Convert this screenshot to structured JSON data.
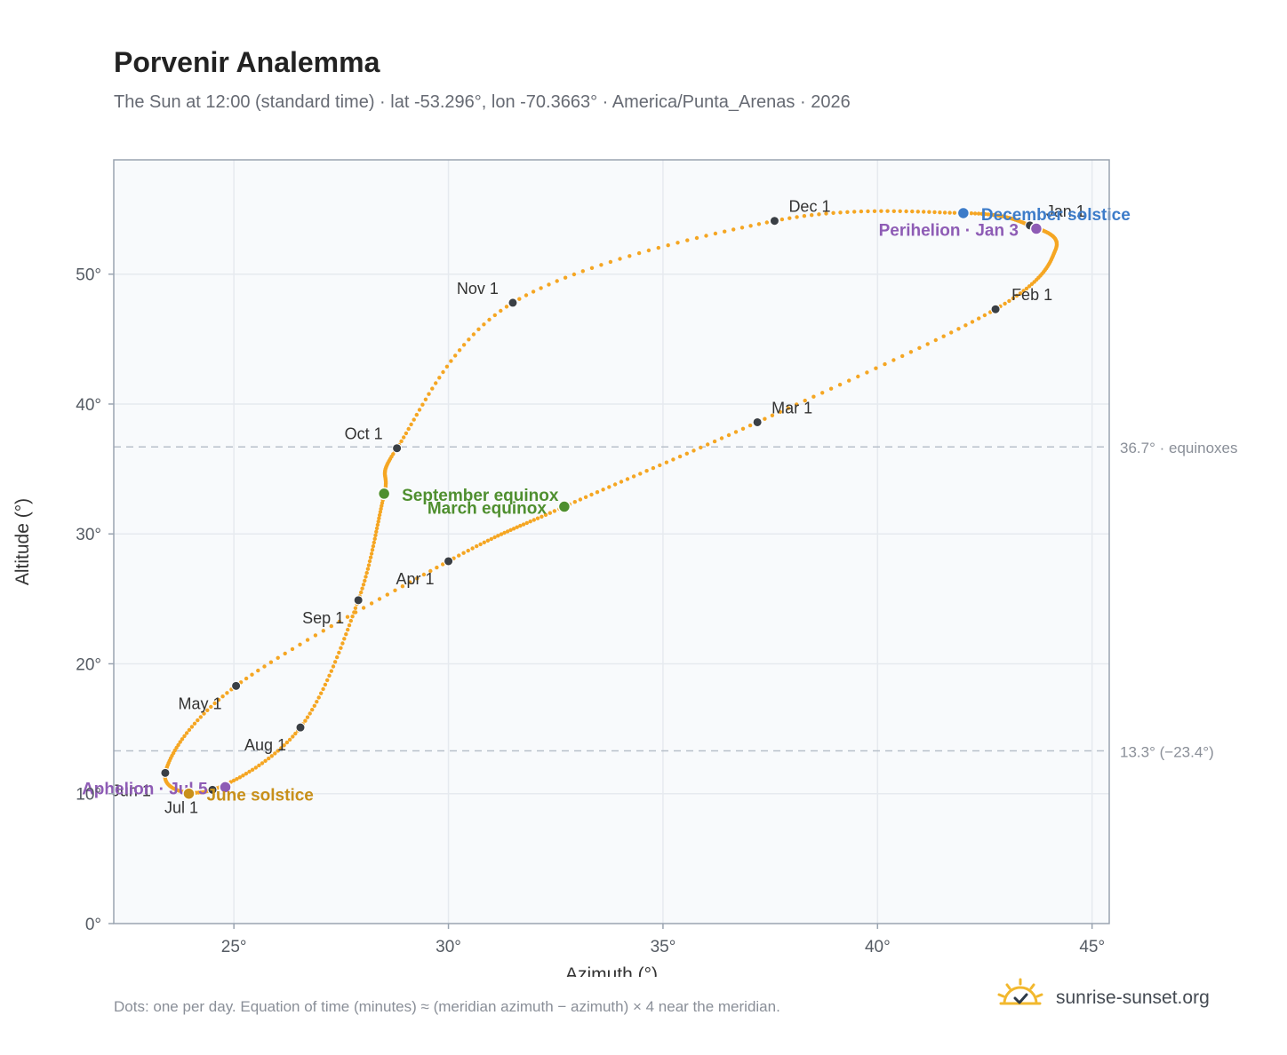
{
  "title": "Porvenir Analemma",
  "subtitle": "The Sun at 12:00 (standard time) · lat -53.296°, lon -70.3663° · America/Punta_Arenas · 2026",
  "footnote": "Dots: one per day. Equation of time (minutes) ≈ (meridian azimuth − azimuth) × 4 near the meridian.",
  "brand": {
    "name": "sunrise-sunset.org",
    "icon": "sun-logo-icon"
  },
  "colors": {
    "curve": "#f5a623",
    "month_marker": "#3a3f45",
    "december_solstice": "#3d7cc9",
    "june_solstice": "#c8901a",
    "equinox": "#4f8f2f",
    "apsis": "#8e5cb5",
    "grid": "#e6eaef",
    "reference_line": "#b8c0ca",
    "axis_frame": "#9aa4b1"
  },
  "chart_data": {
    "type": "scatter",
    "title": "Porvenir Analemma",
    "xlabel": "Azimuth (°)",
    "ylabel": "Altitude (°)",
    "xlim": [
      22.2,
      45.4
    ],
    "ylim": [
      0,
      58.8
    ],
    "x_ticks": [
      25,
      30,
      35,
      40,
      45
    ],
    "x_tick_labels": [
      "25°",
      "30°",
      "35°",
      "40°",
      "45°"
    ],
    "y_ticks": [
      0,
      10,
      20,
      30,
      40,
      50
    ],
    "y_tick_labels": [
      "0°",
      "10°",
      "20°",
      "30°",
      "40°",
      "50°"
    ],
    "grid": true,
    "reference_lines": [
      {
        "value": 36.7,
        "label": "36.7° · equinoxes"
      },
      {
        "value": 13.3,
        "label": "13.3° (−23.4°)"
      }
    ],
    "curve_anchors": [
      {
        "x": 43.55,
        "y": 53.75
      },
      {
        "x": 44.15,
        "y": 51.9
      },
      {
        "x": 42.75,
        "y": 47.3
      },
      {
        "x": 37.2,
        "y": 38.6
      },
      {
        "x": 32.7,
        "y": 32.1
      },
      {
        "x": 30.0,
        "y": 27.9
      },
      {
        "x": 25.05,
        "y": 18.3
      },
      {
        "x": 23.4,
        "y": 11.6
      },
      {
        "x": 24.5,
        "y": 10.3
      },
      {
        "x": 26.55,
        "y": 15.1
      },
      {
        "x": 27.9,
        "y": 24.9
      },
      {
        "x": 28.5,
        "y": 33.0
      },
      {
        "x": 28.8,
        "y": 36.6
      },
      {
        "x": 31.5,
        "y": 47.8
      },
      {
        "x": 37.6,
        "y": 54.1
      },
      {
        "x": 42.0,
        "y": 54.7
      },
      {
        "x": 43.55,
        "y": 53.75
      }
    ],
    "month_markers": [
      {
        "label": "Jan 1",
        "x": 43.55,
        "y": 53.75
      },
      {
        "label": "Feb 1",
        "x": 42.75,
        "y": 47.3
      },
      {
        "label": "Mar 1",
        "x": 37.2,
        "y": 38.6
      },
      {
        "label": "Apr 1",
        "x": 30.0,
        "y": 27.9
      },
      {
        "label": "May 1",
        "x": 25.05,
        "y": 18.3
      },
      {
        "label": "Jun 1",
        "x": 23.4,
        "y": 11.6
      },
      {
        "label": "Jul 1",
        "x": 24.5,
        "y": 10.3
      },
      {
        "label": "Aug 1",
        "x": 26.55,
        "y": 15.1
      },
      {
        "label": "Sep 1",
        "x": 27.9,
        "y": 24.9
      },
      {
        "label": "Oct 1",
        "x": 28.8,
        "y": 36.6
      },
      {
        "label": "Nov 1",
        "x": 31.5,
        "y": 47.8
      },
      {
        "label": "Dec 1",
        "x": 37.6,
        "y": 54.1
      }
    ],
    "events": [
      {
        "label": "December solstice",
        "x": 42.0,
        "y": 54.7,
        "color": "#3d7cc9"
      },
      {
        "label": "Perihelion · Jan 3",
        "x": 43.7,
        "y": 53.5,
        "color": "#8e5cb5"
      },
      {
        "label": "September equinox",
        "x": 28.5,
        "y": 33.1,
        "color": "#4f8f2f"
      },
      {
        "label": "March equinox",
        "x": 32.7,
        "y": 32.1,
        "color": "#4f8f2f"
      },
      {
        "label": "Aphelion · Jul 5",
        "x": 24.8,
        "y": 10.5,
        "color": "#8e5cb5"
      },
      {
        "label": "June solstice",
        "x": 23.95,
        "y": 10.0,
        "color": "#c8901a"
      }
    ]
  }
}
